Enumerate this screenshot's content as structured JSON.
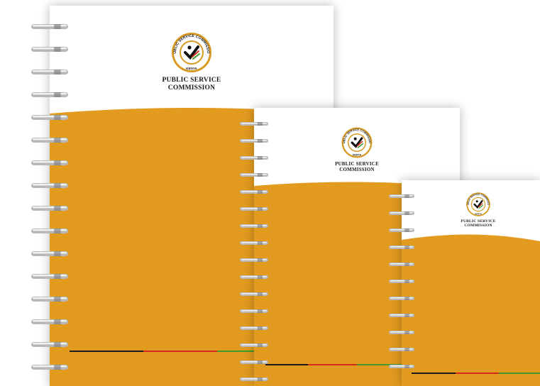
{
  "brand": {
    "name_line1": "PUBLIC SERVICE",
    "name_line2": "COMMISSION",
    "seal_ring_text": "PUBLIC SERVICE COMMISSION",
    "seal_bottom_text": "KENYA"
  },
  "colors": {
    "cover_orange": "#E29B1F",
    "cover_white": "#FFFFFF",
    "seal_gold": "#D79A22",
    "stripe_black": "#1A1A1A",
    "stripe_red": "#D4291C",
    "stripe_green": "#3E9A2D",
    "spiral_silver": "#B8B8B8"
  },
  "notebooks": [
    {
      "id": "large",
      "icon": "spiral-binding-icon"
    },
    {
      "id": "medium",
      "icon": "spiral-binding-icon"
    },
    {
      "id": "small",
      "icon": "spiral-binding-icon"
    }
  ]
}
